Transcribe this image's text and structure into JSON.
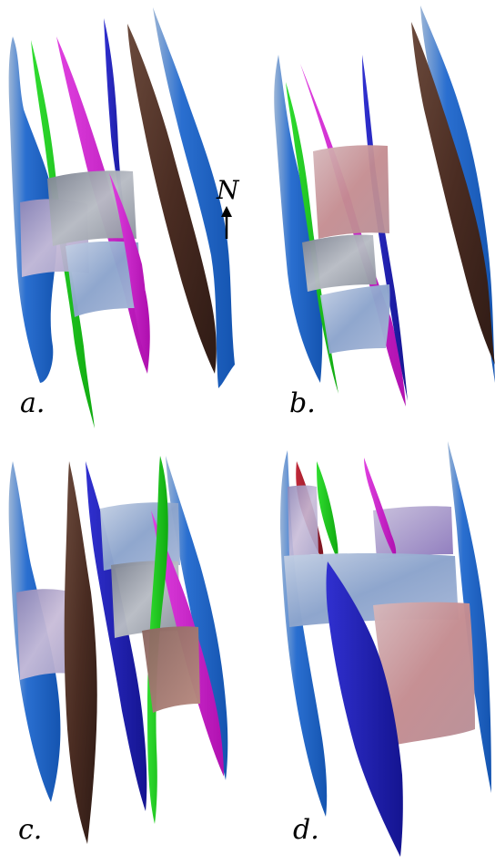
{
  "figure": {
    "panels": [
      {
        "label": "a."
      },
      {
        "label": "b."
      },
      {
        "label": "c."
      },
      {
        "label": "d."
      }
    ],
    "north_arrow": {
      "label": "N",
      "icon": "arrow-up-icon"
    }
  },
  "colors": {
    "blue_surface": "#1a5fbf",
    "green_surface": "#22cc22",
    "magenta_surface": "#cc22cc",
    "navy_surface": "#1c1cb0",
    "brown_surface": "#4a2c22",
    "red_surface": "#a01c2a",
    "slab_light_blue": "#9fb2d4",
    "slab_gray": "#9aa0a8",
    "slab_lavender": "#b6a8cc",
    "slab_pink": "#c9a0a4"
  }
}
